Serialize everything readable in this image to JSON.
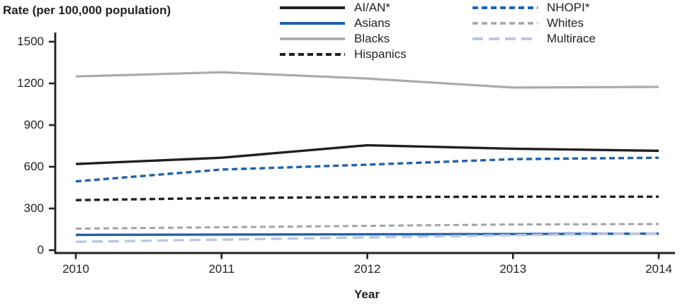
{
  "chart_data": {
    "type": "line",
    "title": "Rate (per 100,000 population)",
    "xlabel": "Year",
    "ylabel": "Rate (per 100,000 population)",
    "categories": [
      "2010",
      "2011",
      "2012",
      "2013",
      "2014"
    ],
    "ylim": [
      0,
      1500
    ],
    "yticks": [
      0,
      300,
      600,
      900,
      1200,
      1500
    ],
    "ytick_labels": [
      "0",
      "300",
      "600",
      "900",
      "1200",
      "1500"
    ],
    "grid": false,
    "legend_position": "top",
    "axis_color": "#231f20",
    "series": [
      {
        "name": "AI/AN*",
        "color": "#231f20",
        "style": "solid",
        "width": 3.4,
        "values": [
          620,
          665,
          755,
          730,
          715
        ]
      },
      {
        "name": "Asians",
        "color": "#2062ab",
        "style": "solid",
        "width": 3.4,
        "values": [
          110,
          112,
          114,
          116,
          119
        ]
      },
      {
        "name": "Blacks",
        "color": "#a8aaad",
        "style": "solid",
        "width": 3.2,
        "values": [
          1250,
          1280,
          1235,
          1170,
          1175
        ]
      },
      {
        "name": "Hispanics",
        "color": "#231f20",
        "style": "dashed",
        "width": 3.4,
        "values": [
          360,
          375,
          382,
          385,
          385
        ]
      },
      {
        "name": "NHOPI*",
        "color": "#2062ab",
        "style": "dashed",
        "width": 3.4,
        "values": [
          495,
          580,
          615,
          655,
          665
        ]
      },
      {
        "name": "Whites",
        "color": "#a2a4a7",
        "style": "dashed",
        "width": 3.0,
        "values": [
          155,
          165,
          175,
          185,
          188
        ]
      },
      {
        "name": "Multirace",
        "color": "#b9c7e2",
        "style": "longdash",
        "width": 3.4,
        "values": [
          60,
          76,
          92,
          108,
          121
        ]
      }
    ],
    "legend_columns": [
      [
        0,
        1,
        2,
        3
      ],
      [
        4,
        5,
        6
      ]
    ]
  }
}
